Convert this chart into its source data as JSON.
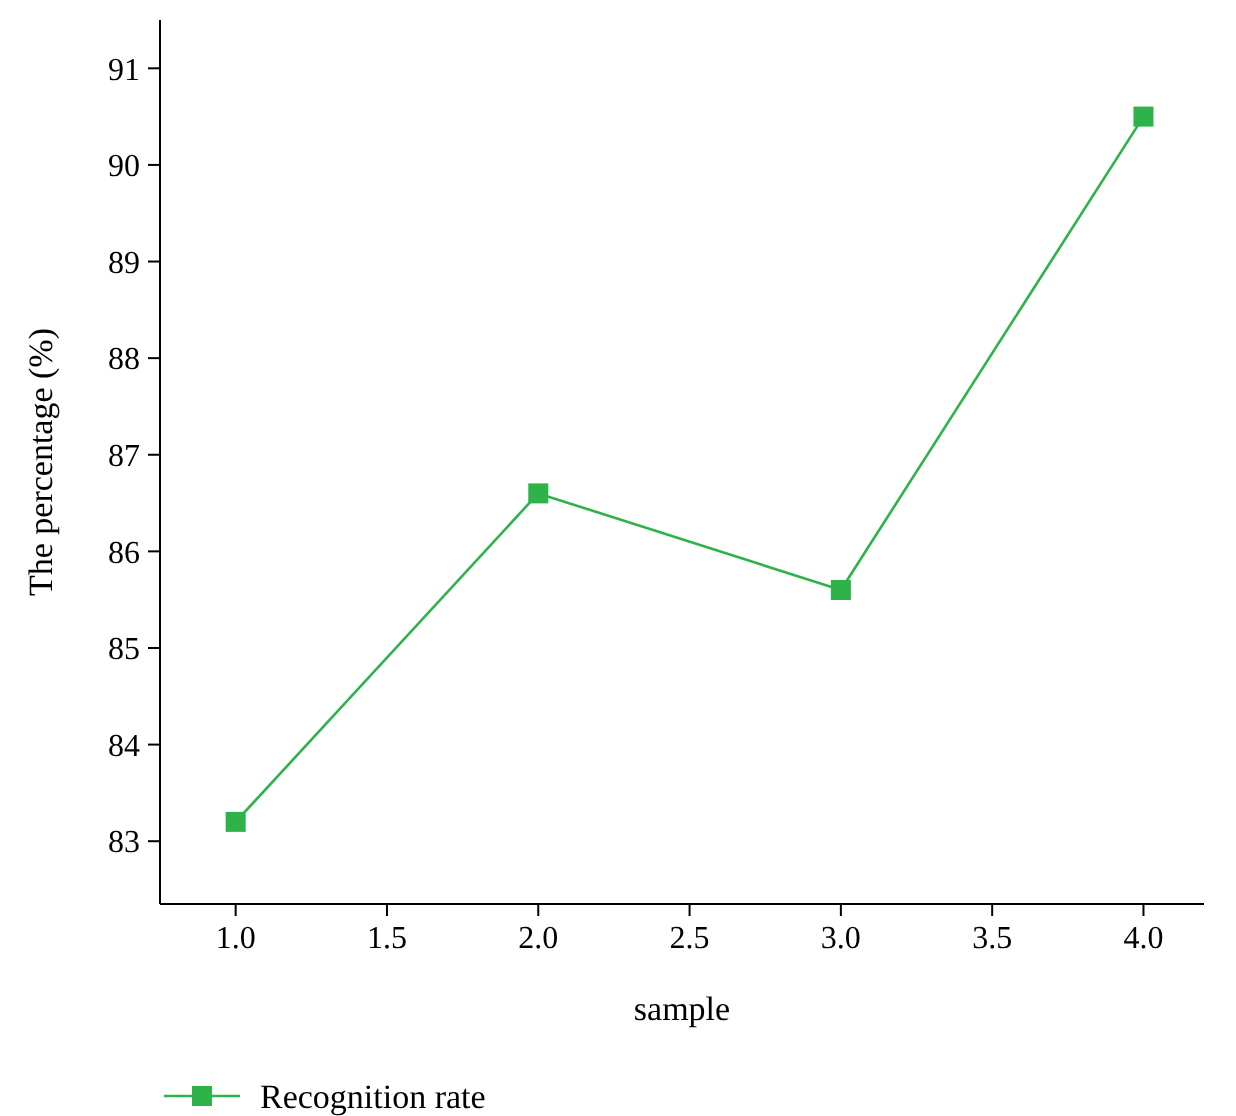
{
  "chart_data": {
    "type": "line",
    "xlabel": "sample",
    "ylabel": "The percentage (%)",
    "x": [
      1,
      2,
      3,
      4
    ],
    "series": [
      {
        "name": "Recognition rate",
        "color": "#2db34a",
        "values": [
          83.2,
          86.6,
          85.6,
          90.5
        ]
      }
    ],
    "xlim": [
      0.75,
      4.2
    ],
    "xticks": [
      {
        "value": 1,
        "label": "1.0"
      },
      {
        "value": 1.5,
        "label": "1.5"
      },
      {
        "value": 2,
        "label": "2.0"
      },
      {
        "value": 2.5,
        "label": "2.5"
      },
      {
        "value": 3,
        "label": "3.0"
      },
      {
        "value": 3.5,
        "label": "3.5"
      },
      {
        "value": 4,
        "label": "4.0"
      }
    ],
    "ylim": [
      82.35,
      91.5
    ],
    "yticks": [
      83,
      84,
      85,
      86,
      87,
      88,
      89,
      90,
      91
    ],
    "marker": "square",
    "legend": "bottom left",
    "grid": false
  }
}
